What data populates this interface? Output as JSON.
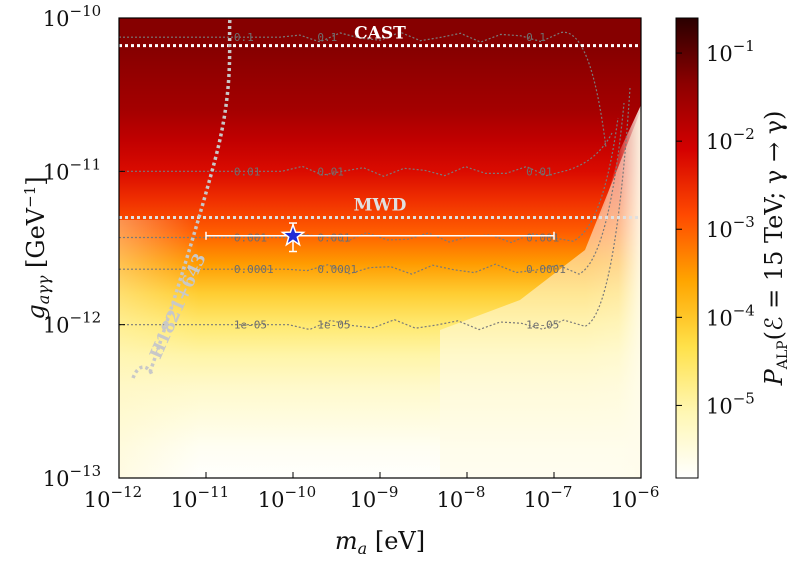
{
  "chart_data": {
    "type": "heatmap",
    "xlabel": "m_a [eV]",
    "ylabel": "g_aγγ [GeV^-1]",
    "xscale": "log",
    "yscale": "log",
    "xlim": [
      1e-12,
      1e-06
    ],
    "ylim": [
      1e-13,
      1e-10
    ],
    "x_ticks": [
      {
        "exp": "-12"
      },
      {
        "exp": "-11"
      },
      {
        "exp": "-10"
      },
      {
        "exp": "-9"
      },
      {
        "exp": "-8"
      },
      {
        "exp": "-7"
      },
      {
        "exp": "-6"
      }
    ],
    "y_ticks": [
      {
        "exp": "-13"
      },
      {
        "exp": "-12"
      },
      {
        "exp": "-11"
      },
      {
        "exp": "-10"
      }
    ],
    "colorbar": {
      "label": "P_ALP(ℰ = 15 TeV; γ → γ)",
      "scale": "log",
      "range": [
        1.5e-06,
        0.25
      ],
      "ticks": [
        {
          "exp": "-5"
        },
        {
          "exp": "-4"
        },
        {
          "exp": "-3"
        },
        {
          "exp": "-2"
        },
        {
          "exp": "-1"
        }
      ],
      "colors": [
        "#ffffff",
        "#fff7b3",
        "#ffe14a",
        "#ffa500",
        "#ff4a00",
        "#d40000",
        "#8c0000",
        "#2a0000"
      ]
    },
    "field_levels_log10": [
      -1.3,
      -1.3,
      -1.45,
      -1.6,
      -1.9,
      -2.2,
      -2.6,
      -3.0,
      -3.5,
      -4.1,
      -4.6,
      -5.0,
      -5.3,
      -5.5,
      -5.7,
      -5.8
    ],
    "contours": [
      {
        "label": "1e-05",
        "y_at_low_mass": 1e-12
      },
      {
        "label": "0.0001",
        "y_at_low_mass": 2.3e-12
      },
      {
        "label": "0.001",
        "y_at_low_mass": 3.7e-12
      },
      {
        "label": "0.01",
        "y_at_low_mass": 1e-11
      },
      {
        "label": "0.1",
        "y_at_low_mass": 7.5e-11
      }
    ],
    "bounds": [
      {
        "label": "CAST",
        "g": 6.6e-11,
        "color": "#ffffff"
      },
      {
        "label": "MWD",
        "g": 5e-12,
        "color": "#e0e0e0"
      },
      {
        "label": "H1821+643",
        "color": "#c8c8c8"
      }
    ],
    "best_fit": {
      "m_a": 1e-10,
      "g": 3.8e-12,
      "m_range": [
        1e-11,
        1e-07
      ],
      "g_range": [
        3e-12,
        4.6e-12
      ],
      "marker_color": "#1f2bd6"
    }
  }
}
